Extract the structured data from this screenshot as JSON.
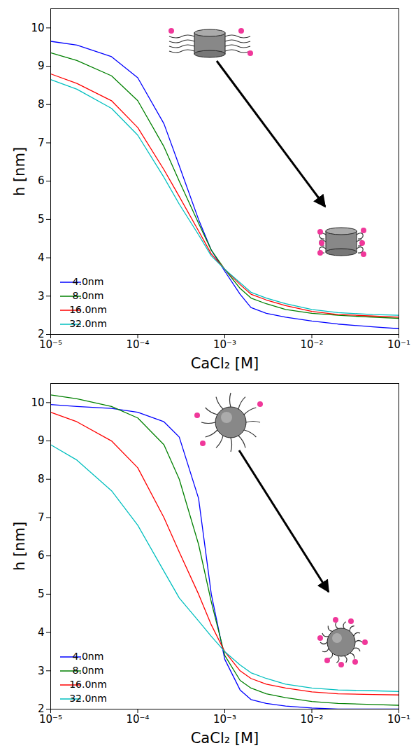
{
  "chart_data": [
    {
      "type": "line",
      "xlabel": "CaCl₂ [M]",
      "ylabel": "h [nm]",
      "log": "x",
      "legend": "lower left",
      "grid": false,
      "xlim": [
        1e-05,
        0.1
      ],
      "ylim": [
        2,
        10.5
      ],
      "xticks": [
        {
          "value": 1e-05,
          "label": "10⁻⁵"
        },
        {
          "value": 0.0001,
          "label": "10⁻⁴"
        },
        {
          "value": 0.001,
          "label": "10⁻³"
        },
        {
          "value": 0.01,
          "label": "10⁻²"
        },
        {
          "value": 0.1,
          "label": "10⁻¹"
        }
      ],
      "yticks": [
        2,
        3,
        4,
        5,
        6,
        7,
        8,
        9,
        10
      ],
      "x": [
        1e-05,
        2e-05,
        5e-05,
        0.0001,
        0.0002,
        0.0003,
        0.0005,
        0.0007,
        0.001,
        0.0015,
        0.002,
        0.003,
        0.005,
        0.01,
        0.02,
        0.05,
        0.1
      ],
      "series": [
        {
          "name": "4.0nm",
          "color": "#0000ff",
          "values": [
            9.65,
            9.55,
            9.25,
            8.7,
            7.5,
            6.4,
            5.0,
            4.2,
            3.65,
            3.05,
            2.7,
            2.55,
            2.45,
            2.35,
            2.27,
            2.2,
            2.15
          ]
        },
        {
          "name": "8.0nm",
          "color": "#008000",
          "values": [
            9.35,
            9.15,
            8.75,
            8.1,
            6.9,
            6.0,
            4.9,
            4.2,
            3.7,
            3.2,
            2.95,
            2.8,
            2.65,
            2.55,
            2.5,
            2.45,
            2.42
          ]
        },
        {
          "name": "16.0nm",
          "color": "#ff0000",
          "values": [
            8.8,
            8.55,
            8.1,
            7.4,
            6.3,
            5.6,
            4.7,
            4.1,
            3.7,
            3.3,
            3.05,
            2.9,
            2.75,
            2.6,
            2.52,
            2.48,
            2.45
          ]
        },
        {
          "name": "32.0nm",
          "color": "#00bfbf",
          "values": [
            8.65,
            8.4,
            7.9,
            7.2,
            6.1,
            5.4,
            4.6,
            4.05,
            3.7,
            3.35,
            3.1,
            2.95,
            2.8,
            2.65,
            2.57,
            2.52,
            2.5
          ]
        }
      ]
    },
    {
      "type": "line",
      "xlabel": "CaCl₂ [M]",
      "ylabel": "h [nm]",
      "log": "x",
      "legend": "lower left",
      "grid": false,
      "xlim": [
        1e-05,
        0.1
      ],
      "ylim": [
        2,
        10.5
      ],
      "xticks": [
        {
          "value": 1e-05,
          "label": "10⁻⁵"
        },
        {
          "value": 0.0001,
          "label": "10⁻⁴"
        },
        {
          "value": 0.001,
          "label": "10⁻³"
        },
        {
          "value": 0.01,
          "label": "10⁻²"
        },
        {
          "value": 0.1,
          "label": "10⁻¹"
        }
      ],
      "yticks": [
        2,
        3,
        4,
        5,
        6,
        7,
        8,
        9,
        10
      ],
      "x": [
        1e-05,
        2e-05,
        5e-05,
        0.0001,
        0.0002,
        0.0003,
        0.0005,
        0.0007,
        0.001,
        0.0015,
        0.002,
        0.003,
        0.005,
        0.01,
        0.02,
        0.05,
        0.1
      ],
      "series": [
        {
          "name": "4.0nm",
          "color": "#0000ff",
          "values": [
            9.95,
            9.9,
            9.85,
            9.75,
            9.5,
            9.1,
            7.5,
            5.0,
            3.3,
            2.5,
            2.25,
            2.15,
            2.08,
            2.03,
            2.0,
            2.0,
            2.0
          ]
        },
        {
          "name": "8.0nm",
          "color": "#008000",
          "values": [
            10.2,
            10.1,
            9.9,
            9.6,
            8.9,
            8.0,
            6.3,
            4.8,
            3.4,
            2.75,
            2.55,
            2.4,
            2.3,
            2.2,
            2.15,
            2.12,
            2.1
          ]
        },
        {
          "name": "16.0nm",
          "color": "#ff0000",
          "values": [
            9.75,
            9.5,
            9.0,
            8.3,
            7.0,
            6.1,
            5.0,
            4.2,
            3.5,
            3.0,
            2.8,
            2.65,
            2.55,
            2.45,
            2.4,
            2.38,
            2.37
          ]
        },
        {
          "name": "32.0nm",
          "color": "#00bfbf",
          "values": [
            8.9,
            8.5,
            7.7,
            6.8,
            5.6,
            4.9,
            4.3,
            3.9,
            3.5,
            3.15,
            2.95,
            2.8,
            2.65,
            2.55,
            2.5,
            2.48,
            2.46
          ]
        }
      ]
    }
  ]
}
